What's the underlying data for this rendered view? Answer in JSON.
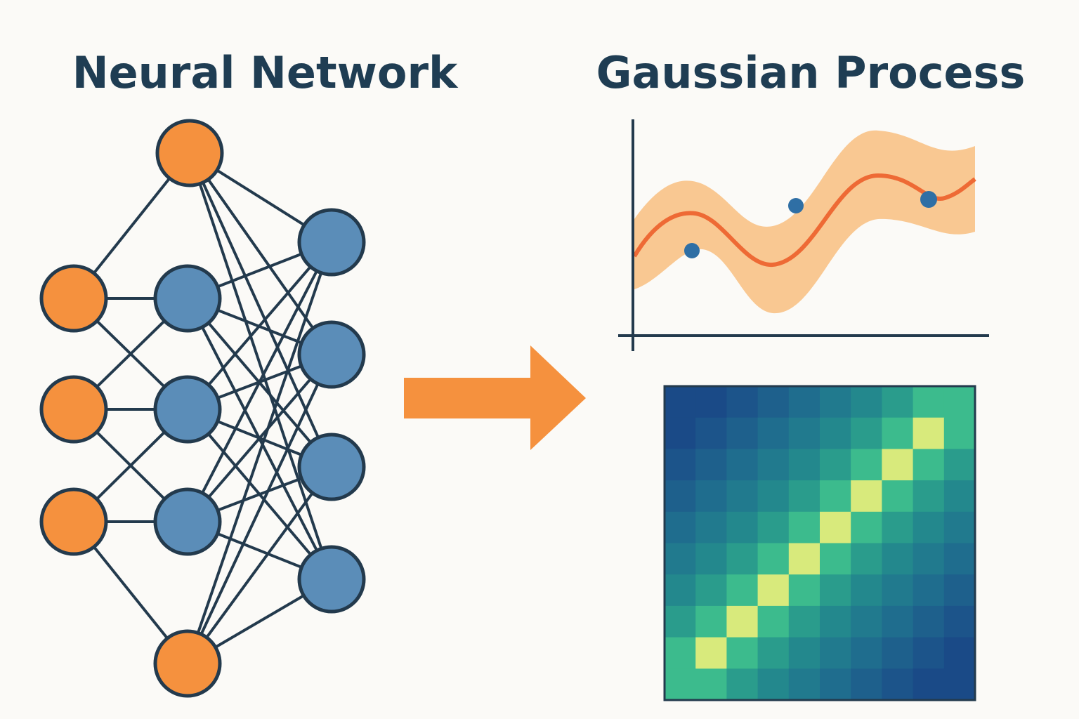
{
  "left": {
    "title": "Neural Network"
  },
  "right": {
    "title": "Gaussian Process"
  }
}
